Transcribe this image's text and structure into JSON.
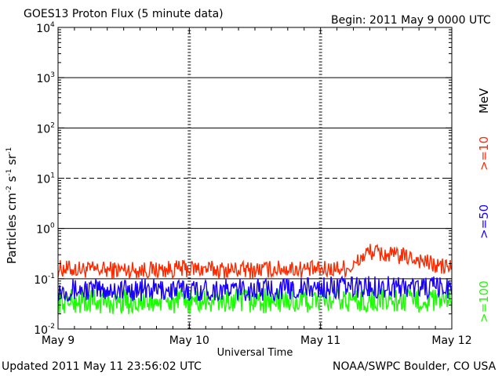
{
  "header": {
    "title": "GOES13 Proton Flux (5 minute data)",
    "begin": "Begin: 2011 May 9 0000 UTC"
  },
  "footer": {
    "updated": "Updated 2011 May 11 23:56:02 UTC",
    "credit": "NOAA/SWPC Boulder, CO USA"
  },
  "chart_data": {
    "type": "line",
    "title": "GOES13 Proton Flux (5 minute data)",
    "xlabel": "Universal Time",
    "ylabel": "Particles cm^-2 s^-1 sr^-1",
    "y_scale": "log",
    "ylim": [
      0.01,
      10000
    ],
    "y_ticks": [
      {
        "base": "10",
        "exp": "4"
      },
      {
        "base": "10",
        "exp": "3"
      },
      {
        "base": "10",
        "exp": "2"
      },
      {
        "base": "10",
        "exp": "1"
      },
      {
        "base": "10",
        "exp": "0"
      },
      {
        "base": "10",
        "exp": "-1"
      },
      {
        "base": "10",
        "exp": "-2"
      }
    ],
    "x_ticks": [
      "May 9",
      "May 10",
      "May 11",
      "May 12"
    ],
    "xlim": [
      "2011-05-09 00:00",
      "2011-05-12 00:00"
    ],
    "unit_label": "MeV",
    "threshold_lines": [
      {
        "value": 1000,
        "style": "solid"
      },
      {
        "value": 100,
        "style": "solid"
      },
      {
        "value": 10,
        "style": "dashed"
      },
      {
        "value": 1,
        "style": "solid"
      },
      {
        "value": 0.1,
        "style": "solid"
      },
      {
        "value": 0.01,
        "style": "dashed"
      }
    ],
    "series": [
      {
        "name": ">=10",
        "color": "#ff2a00",
        "x": [
          "2011-05-09 00:00",
          "2011-05-09 06:00",
          "2011-05-09 12:00",
          "2011-05-09 18:00",
          "2011-05-10 00:00",
          "2011-05-10 06:00",
          "2011-05-10 12:00",
          "2011-05-10 18:00",
          "2011-05-11 00:00",
          "2011-05-11 06:00",
          "2011-05-11 09:00",
          "2011-05-11 12:00",
          "2011-05-11 15:00",
          "2011-05-11 18:00",
          "2011-05-11 21:00",
          "2011-05-12 00:00"
        ],
        "values": [
          0.16,
          0.15,
          0.15,
          0.15,
          0.16,
          0.15,
          0.15,
          0.16,
          0.15,
          0.17,
          0.35,
          0.3,
          0.28,
          0.24,
          0.18,
          0.17
        ]
      },
      {
        "name": ">=50",
        "color": "#1a00ff",
        "x": [
          "2011-05-09 00:00",
          "2011-05-09 12:00",
          "2011-05-10 00:00",
          "2011-05-10 12:00",
          "2011-05-11 00:00",
          "2011-05-11 12:00",
          "2011-05-12 00:00"
        ],
        "values": [
          0.06,
          0.06,
          0.06,
          0.06,
          0.065,
          0.07,
          0.065
        ]
      },
      {
        "name": ">=100",
        "color": "#1aff00",
        "x": [
          "2011-05-09 00:00",
          "2011-05-09 12:00",
          "2011-05-10 00:00",
          "2011-05-10 12:00",
          "2011-05-11 00:00",
          "2011-05-11 12:00",
          "2011-05-12 00:00"
        ],
        "values": [
          0.035,
          0.035,
          0.035,
          0.036,
          0.036,
          0.037,
          0.036
        ]
      }
    ]
  }
}
